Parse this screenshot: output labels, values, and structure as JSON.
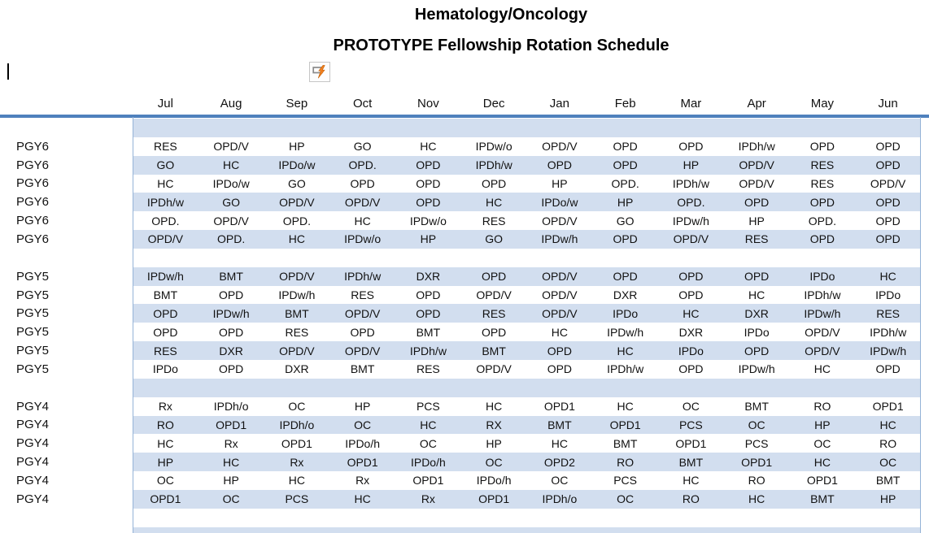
{
  "title": {
    "line1": "Hematology/Oncology",
    "line2": "PROTOTYPE Fellowship Rotation Schedule"
  },
  "icon": {
    "name": "autofill-options-icon",
    "bolt_color": "#F28020",
    "box_color": "#8a8a8a"
  },
  "months": [
    "Jul",
    "Aug",
    "Sep",
    "Oct",
    "Nov",
    "Dec",
    "Jan",
    "Feb",
    "Mar",
    "Apr",
    "May",
    "Jun"
  ],
  "rows": [
    {
      "label": "",
      "cells": []
    },
    {
      "label": "PGY6",
      "cells": [
        "RES",
        "OPD/V",
        "HP",
        "GO",
        "HC",
        "IPDw/o",
        "OPD/V",
        "OPD",
        "OPD",
        "IPDh/w",
        "OPD",
        "OPD"
      ]
    },
    {
      "label": "PGY6",
      "cells": [
        "GO",
        "HC",
        "IPDo/w",
        "OPD.",
        "OPD",
        "IPDh/w",
        "OPD",
        "OPD",
        "HP",
        "OPD/V",
        "RES",
        "OPD"
      ]
    },
    {
      "label": "PGY6",
      "cells": [
        "HC",
        "IPDo/w",
        "GO",
        "OPD",
        "OPD",
        "OPD",
        "HP",
        "OPD.",
        "IPDh/w",
        "OPD/V",
        "RES",
        "OPD/V"
      ]
    },
    {
      "label": "PGY6",
      "cells": [
        "IPDh/w",
        "GO",
        "OPD/V",
        "OPD/V",
        "OPD",
        "HC",
        "IPDo/w",
        "HP",
        "OPD.",
        "OPD",
        "OPD",
        "OPD"
      ]
    },
    {
      "label": "PGY6",
      "cells": [
        "OPD.",
        "OPD/V",
        "OPD.",
        "HC",
        "IPDw/o",
        "RES",
        "OPD/V",
        "GO",
        "IPDw/h",
        "HP",
        "OPD.",
        "OPD"
      ]
    },
    {
      "label": "PGY6",
      "cells": [
        "OPD/V",
        "OPD.",
        "HC",
        "IPDw/o",
        "HP",
        "GO",
        "IPDw/h",
        "OPD",
        "OPD/V",
        "RES",
        "OPD",
        "OPD"
      ]
    },
    {
      "label": "",
      "cells": []
    },
    {
      "label": "PGY5",
      "cells": [
        "IPDw/h",
        "BMT",
        "OPD/V",
        "IPDh/w",
        "DXR",
        "OPD",
        "OPD/V",
        "OPD",
        "OPD",
        "OPD",
        "IPDo",
        "HC"
      ]
    },
    {
      "label": "PGY5",
      "cells": [
        "BMT",
        "OPD",
        "IPDw/h",
        "RES",
        "OPD",
        "OPD/V",
        "OPD/V",
        "DXR",
        "OPD",
        "HC",
        "IPDh/w",
        "IPDo"
      ]
    },
    {
      "label": "PGY5",
      "cells": [
        "OPD",
        "IPDw/h",
        "BMT",
        "OPD/V",
        "OPD",
        "RES",
        "OPD/V",
        "IPDo",
        "HC",
        "DXR",
        "IPDw/h",
        "RES"
      ]
    },
    {
      "label": "PGY5",
      "cells": [
        "OPD",
        "OPD",
        "RES",
        "OPD",
        "BMT",
        "OPD",
        "HC",
        "IPDw/h",
        "DXR",
        "IPDo",
        "OPD/V",
        "IPDh/w"
      ]
    },
    {
      "label": "PGY5",
      "cells": [
        "RES",
        "DXR",
        "OPD/V",
        "OPD/V",
        "IPDh/w",
        "BMT",
        "OPD",
        "HC",
        "IPDo",
        "OPD",
        "OPD/V",
        "IPDw/h"
      ]
    },
    {
      "label": "PGY5",
      "cells": [
        "IPDo",
        "OPD",
        "DXR",
        "BMT",
        "RES",
        "OPD/V",
        "OPD",
        "IPDh/w",
        "OPD",
        "IPDw/h",
        "HC",
        "OPD"
      ]
    },
    {
      "label": "",
      "cells": []
    },
    {
      "label": "PGY4",
      "cells": [
        "Rx",
        "IPDh/o",
        "OC",
        "HP",
        "PCS",
        "HC",
        "OPD1",
        "HC",
        "OC",
        "BMT",
        "RO",
        "OPD1"
      ]
    },
    {
      "label": "PGY4",
      "cells": [
        "RO",
        "OPD1",
        "IPDh/o",
        "OC",
        "HC",
        "RX",
        "BMT",
        "OPD1",
        "PCS",
        "OC",
        "HP",
        "HC"
      ]
    },
    {
      "label": "PGY4",
      "cells": [
        "HC",
        "Rx",
        "OPD1",
        "IPDo/h",
        "OC",
        "HP",
        "HC",
        "BMT",
        "OPD1",
        "PCS",
        "OC",
        "RO"
      ]
    },
    {
      "label": "PGY4",
      "cells": [
        "HP",
        "HC",
        "Rx",
        "OPD1",
        "IPDo/h",
        "OC",
        "OPD2",
        "RO",
        "BMT",
        "OPD1",
        "HC",
        "OC"
      ]
    },
    {
      "label": "PGY4",
      "cells": [
        "OC",
        "HP",
        "HC",
        "Rx",
        "OPD1",
        "IPDo/h",
        "OC",
        "PCS",
        "HC",
        "RO",
        "OPD1",
        "BMT"
      ]
    },
    {
      "label": "PGY4",
      "cells": [
        "OPD1",
        "OC",
        "PCS",
        "HC",
        "Rx",
        "OPD1",
        "IPDh/o",
        "OC",
        "RO",
        "HC",
        "BMT",
        "HP"
      ]
    },
    {
      "label": "",
      "cells": []
    },
    {
      "label": "",
      "cells": []
    }
  ],
  "colors": {
    "accent_rule": "#4F81BD",
    "band_fill": "#D2DEEF",
    "table_border": "#95B3D7"
  }
}
